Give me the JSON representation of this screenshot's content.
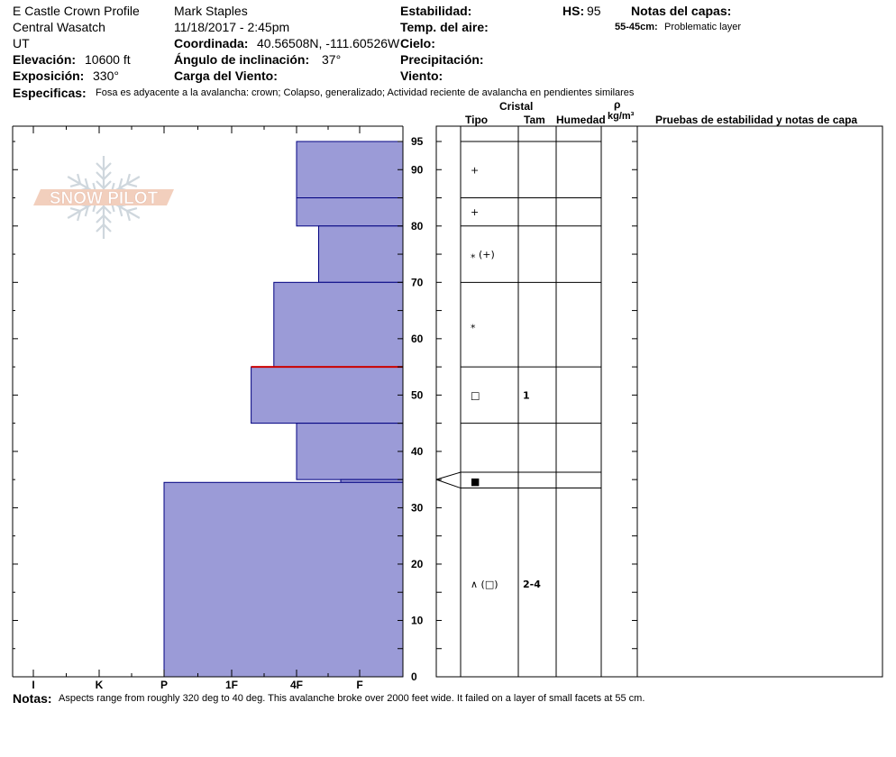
{
  "header": {
    "profile_name": "E Castle Crown Profile",
    "range": "Central Wasatch",
    "state": "UT",
    "elevation_label": "Elevación:",
    "elevation_value": "10600 ft",
    "aspect_label": "Exposición:",
    "aspect_value": "330°",
    "observer": "Mark Staples",
    "datetime": "11/18/2017 - 2:45pm",
    "coord_label": "Coordinada:",
    "coord_value": "40.56508N, -111.60526W",
    "slope_label": "Ángulo de inclinación:",
    "slope_value": "37°",
    "wind_load_label": "Carga del Viento:",
    "stability_label": "Estabilidad:",
    "air_temp_label": "Temp. del aire:",
    "sky_label": "Cielo:",
    "precip_label": "Precipitación:",
    "wind_label": "Viento:",
    "hs_label": "HS:",
    "hs_value": "95",
    "layer_notes_label": "Notas del capas:",
    "layer_note_range": "55-45cm:",
    "layer_note_text": "Problematic layer",
    "specifics_label": "Especificas:",
    "specifics_text": "Fosa es adyacente a la avalancha: crown;  Colapso, generalizado; Actividad reciente de avalancha en pendientes similares"
  },
  "logo_text": "SNOW PILOT",
  "table_headers": {
    "cristal": "Cristal",
    "tipo": "Tipo",
    "tam": "Tam",
    "humedad": "Humedad",
    "rho": "ρ",
    "density_unit": "kg/m³",
    "tests": "Pruebas de estabilidad y notas de capa"
  },
  "notes": {
    "label": "Notas:",
    "text": "Aspects range from roughly 320 deg to 40 deg. This avalanche broke over 2000 feet wide. It failed on a layer of small facets at 55 cm."
  },
  "colors": {
    "layer_fill": "#9b9bd7",
    "layer_stroke": "#000080",
    "problem_line": "#cc0000"
  },
  "chart_data": {
    "type": "bar",
    "orientation": "horizontal",
    "hardness_scale": [
      "I",
      "K",
      "P",
      "1F",
      "4F",
      "F"
    ],
    "height_ticks": [
      0,
      10,
      20,
      30,
      40,
      50,
      60,
      70,
      80,
      90,
      95
    ],
    "height_range": [
      0,
      95
    ],
    "layers": [
      {
        "top": 95,
        "bottom": 85,
        "hardness_index": 4,
        "crystal": "",
        "size": ""
      },
      {
        "top": 85,
        "bottom": 80,
        "hardness_index": 4,
        "crystal": "+",
        "size": ""
      },
      {
        "top": 80,
        "bottom": 70,
        "hardness_index": 4.35,
        "crystal": "⁎ (+)",
        "size": ""
      },
      {
        "top": 70,
        "bottom": 55,
        "hardness_index": 3.65,
        "crystal": "⁎",
        "size": ""
      },
      {
        "top": 55,
        "bottom": 45,
        "hardness_index": 3.3,
        "crystal": "□",
        "size": "1"
      },
      {
        "top": 45,
        "bottom": 35,
        "hardness_index": 4,
        "crystal": "",
        "size": ""
      },
      {
        "top": 35,
        "bottom": 34.5,
        "hardness_index": 4.7,
        "crystal": "■",
        "size": ""
      },
      {
        "top": 34.5,
        "bottom": 0,
        "hardness_index": 2.0,
        "crystal": "∧ (□)",
        "size": "2-4"
      }
    ],
    "crystal_rows": [
      {
        "symbol": "+",
        "height": 90
      },
      {
        "symbol": "+",
        "height": 82.5
      },
      {
        "symbol": "⁎ (+)",
        "height": 75
      },
      {
        "symbol": "⁎",
        "height": 62.5
      },
      {
        "symbol": "□",
        "size": "1",
        "height": 50
      },
      {
        "symbol": "■",
        "height": 34.7
      },
      {
        "symbol": "∧ (□)",
        "size": "2-4",
        "height": 16.5
      }
    ],
    "boundaries": [
      95,
      85,
      80,
      70,
      55,
      45,
      36.3,
      33.5
    ],
    "problem_layer_height": 55
  }
}
